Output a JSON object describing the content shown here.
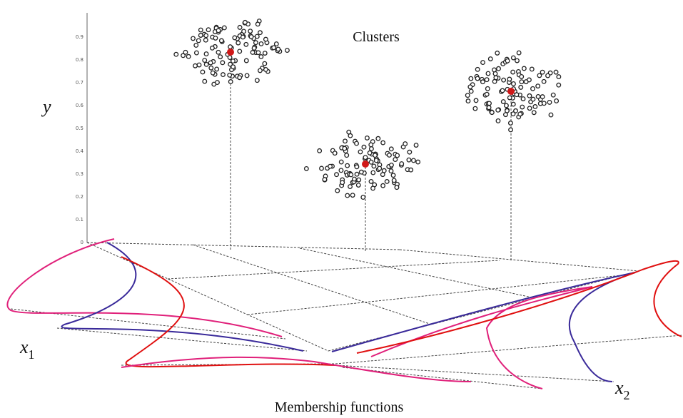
{
  "title": "Clusters",
  "caption": "Membership functions",
  "axes": {
    "y": "y",
    "x1": {
      "base": "x",
      "sub": "1"
    },
    "x2": {
      "base": "x",
      "sub": "2"
    }
  },
  "y_ticks": [
    "0",
    "0.1",
    "0.2",
    "0.3",
    "0.4",
    "0.5",
    "0.6",
    "0.7",
    "0.8",
    "0.9"
  ]
}
